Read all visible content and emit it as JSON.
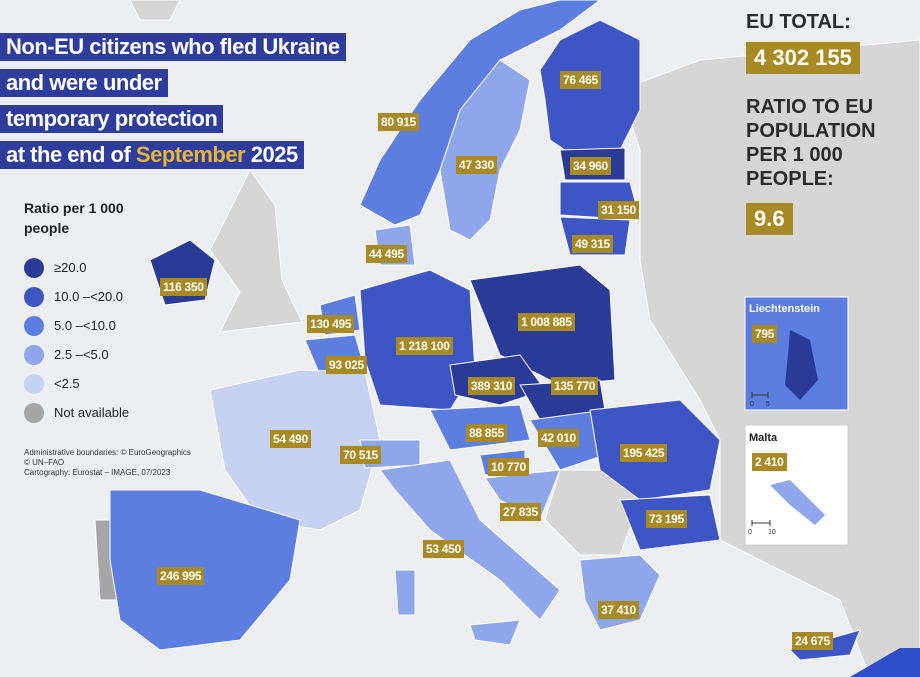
{
  "title": {
    "lines": [
      "Non-EU citizens who fled Ukraine",
      "and were under",
      "temporary protection"
    ],
    "last_line": {
      "before": "at the end of",
      "highlight": "September",
      "after": "2025"
    }
  },
  "legend": {
    "title_lines": [
      "Ratio per 1 000",
      "people"
    ],
    "items": [
      {
        "label": "≥20.0",
        "color": "#2a3a97"
      },
      {
        "label": "10.0 –<20.0",
        "color": "#3d56c4"
      },
      {
        "label": "5.0 –<10.0",
        "color": "#5b7ee0"
      },
      {
        "label": "2.5 –<5.0",
        "color": "#8ea6ea"
      },
      {
        "label": "<2.5",
        "color": "#c7d2f2"
      },
      {
        "label": "Not available",
        "color": "#a6a6a6"
      }
    ]
  },
  "credits": [
    "Administrative boundaries: © EuroGeographics",
    "© UN–FAO",
    "Cartography: Eurostat – IMAGE, 07/2023"
  ],
  "eu_total": {
    "label": "EU TOTAL:",
    "value": "4 302 155",
    "ratio_label_lines": [
      "RATIO TO EU",
      "POPULATION",
      "PER 1 000",
      "PEOPLE:"
    ],
    "ratio_value": "9.6"
  },
  "map_labels": [
    "80 915",
    "76 465",
    "47 330",
    "34 960",
    "31 150",
    "49 315",
    "44 495",
    "116 350",
    "130 495",
    "93 025",
    "1 218 100",
    "1 008 885",
    "389 310",
    "135 770",
    "54 490",
    "70 515",
    "88 855",
    "42 010",
    "10 770",
    "27 835",
    "53 450",
    "195 425",
    "73 195",
    "246 995",
    "37 410",
    "24 675"
  ],
  "insets": [
    {
      "name": "Liechtenstein",
      "value": "795",
      "scale": [
        "0",
        "5"
      ]
    },
    {
      "name": "Malta",
      "value": "2 410",
      "scale": [
        "0",
        "10"
      ]
    }
  ]
}
